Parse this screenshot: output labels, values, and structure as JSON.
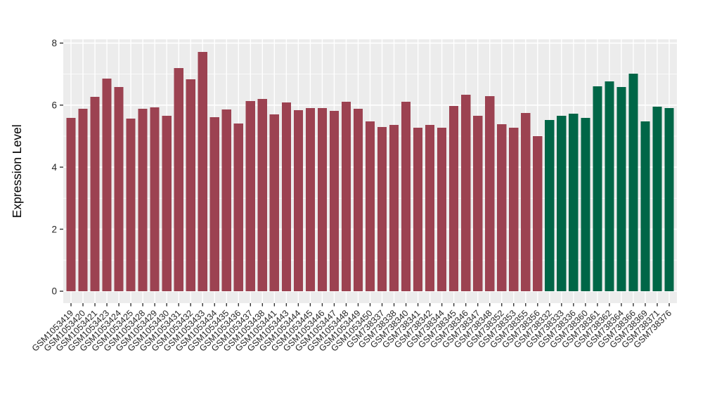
{
  "figure": {
    "background": "#ffffff",
    "panel_background": "#ECECEC",
    "gridline_color": "#ffffff",
    "tick_color": "#333333"
  },
  "chart_data": {
    "type": "bar",
    "title": "",
    "xlabel": "",
    "ylabel": "Expression Level",
    "ylim": [
      0,
      8
    ],
    "yticks": [
      0,
      2,
      4,
      6,
      8
    ],
    "yticks_minor": [
      1,
      3,
      5,
      7
    ],
    "grid": "on",
    "legend_position": "none",
    "x_label_rotation_deg": 45,
    "palette": {
      "group1": "#9C4251",
      "group2": "#006647"
    },
    "group_split_index": 40,
    "categories": [
      "GSM1053419",
      "GSM1053420",
      "GSM1053421",
      "GSM1053423",
      "GSM1053424",
      "GSM1053425",
      "GSM1053428",
      "GSM1053429",
      "GSM1053430",
      "GSM1053431",
      "GSM1053432",
      "GSM1053433",
      "GSM1053434",
      "GSM1053435",
      "GSM1053436",
      "GSM1053437",
      "GSM1053438",
      "GSM1053441",
      "GSM1053443",
      "GSM1053444",
      "GSM1053445",
      "GSM1053446",
      "GSM1053447",
      "GSM1053448",
      "GSM1053449",
      "GSM1053450",
      "GSM738337",
      "GSM738338",
      "GSM738340",
      "GSM738341",
      "GSM738342",
      "GSM738344",
      "GSM738345",
      "GSM738346",
      "GSM738347",
      "GSM738348",
      "GSM738352",
      "GSM738353",
      "GSM738355",
      "GSM738356",
      "GSM738332",
      "GSM738333",
      "GSM738336",
      "GSM738360",
      "GSM738361",
      "GSM738362",
      "GSM738364",
      "GSM738366",
      "GSM738369",
      "GSM738371",
      "GSM738376"
    ],
    "values": [
      5.59,
      5.88,
      6.27,
      6.86,
      6.58,
      5.57,
      5.88,
      5.93,
      5.66,
      7.19,
      6.83,
      7.71,
      5.61,
      5.86,
      5.41,
      6.13,
      6.2,
      5.7,
      6.09,
      5.84,
      5.9,
      5.9,
      5.81,
      6.11,
      5.88,
      5.48,
      5.29,
      5.36,
      6.11,
      5.27,
      5.36,
      5.27,
      5.97,
      6.33,
      5.66,
      6.29,
      5.38,
      5.27,
      5.75,
      5.0,
      5.52,
      5.66,
      5.72,
      5.59,
      6.61,
      6.76,
      6.58,
      7.01,
      5.48,
      5.95,
      5.9
    ]
  }
}
